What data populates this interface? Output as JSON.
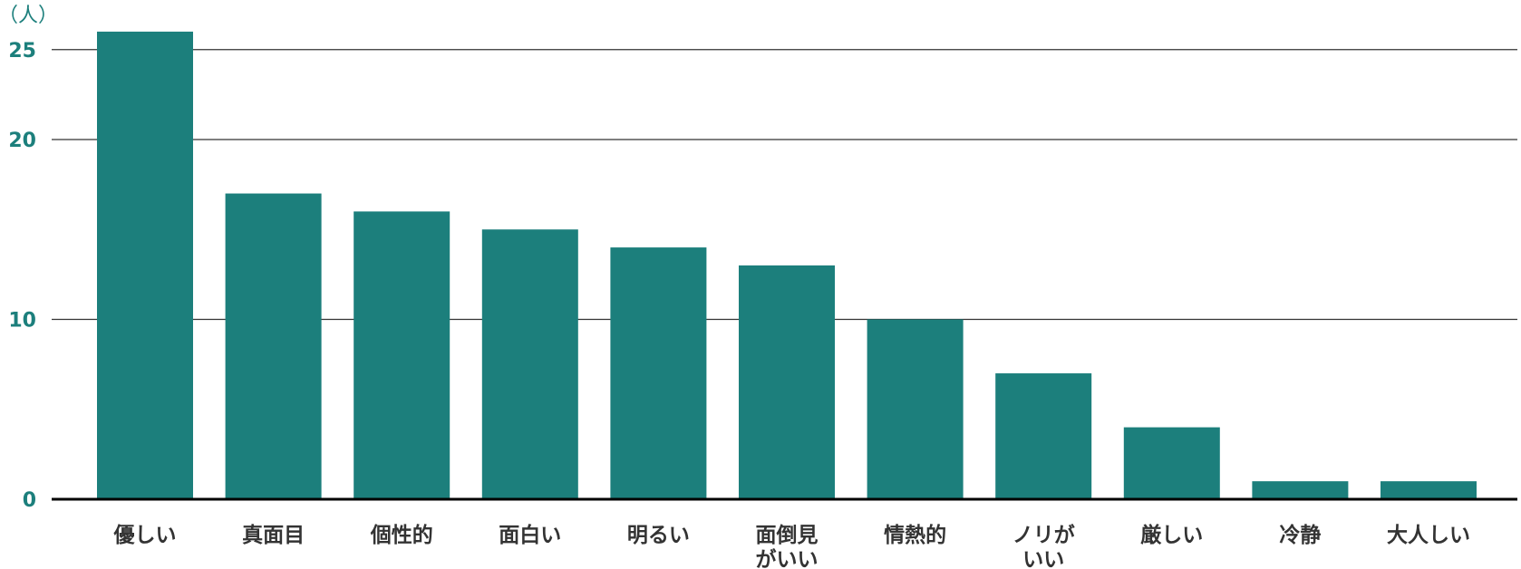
{
  "chart_data": {
    "type": "bar",
    "title": "",
    "xlabel": "",
    "ylabel": "",
    "unit_label": "（人）",
    "categories": [
      [
        "優しい"
      ],
      [
        "真面目"
      ],
      [
        "個性的"
      ],
      [
        "面白い"
      ],
      [
        "明るい"
      ],
      [
        "面倒見",
        "がいい"
      ],
      [
        "情熱的"
      ],
      [
        "ノリが",
        "いい"
      ],
      [
        "厳しい"
      ],
      [
        "冷静"
      ],
      [
        "大人しい"
      ]
    ],
    "values": [
      26,
      17,
      16,
      15,
      14,
      13,
      10,
      7,
      4,
      1,
      1
    ],
    "ylim": [
      0,
      25
    ],
    "yticks": [
      0,
      10,
      20,
      25
    ],
    "grid": true,
    "colors": {
      "bar": "#1c7f7c",
      "axis": "#000000",
      "grid": "#333333",
      "ytick": "#1c7f7c",
      "xtick": "#333333"
    }
  }
}
